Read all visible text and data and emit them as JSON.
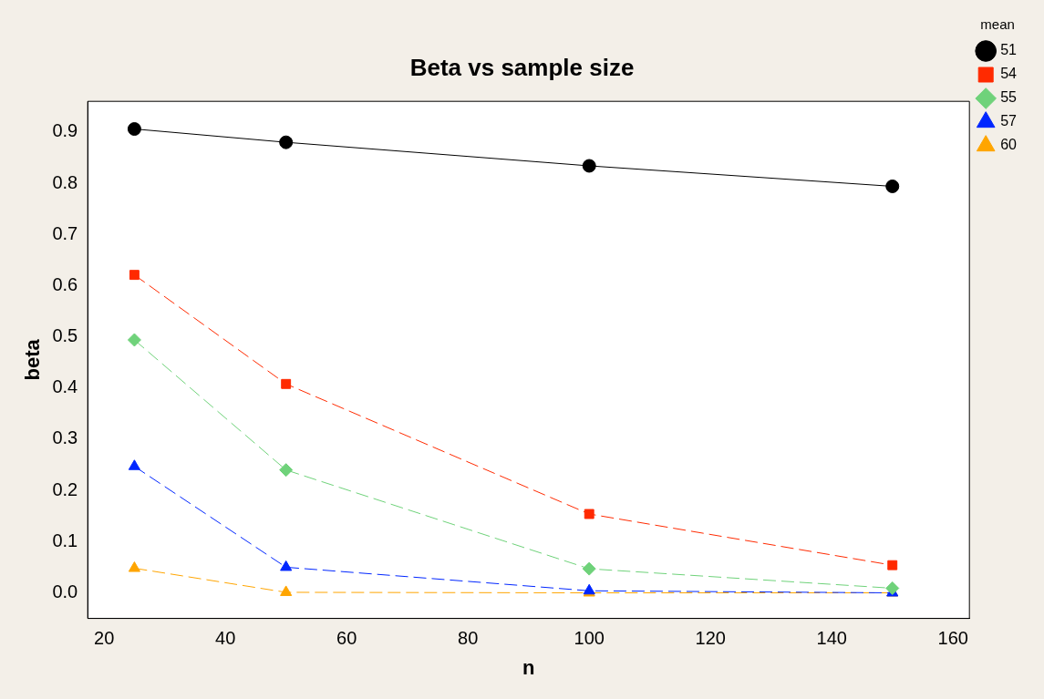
{
  "chart_data": {
    "type": "line",
    "title": "Beta vs sample size",
    "xlabel": "n",
    "ylabel": "beta",
    "legend_title": "mean",
    "x": [
      25,
      50,
      100,
      150
    ],
    "xlim": [
      17.3,
      162.7
    ],
    "xticks": [
      20,
      40,
      60,
      80,
      100,
      120,
      140,
      160
    ],
    "ylim": [
      -0.05,
      0.96
    ],
    "yticks": [
      {
        "value": 0,
        "label": "0.0"
      },
      0.1,
      0.2,
      0.3,
      0.4,
      0.5,
      0.6,
      0.7,
      0.8,
      0.9
    ],
    "grid": false,
    "legend": "top right",
    "series": [
      {
        "name": "51",
        "color": "#000000",
        "values": [
          0.906,
          0.88,
          0.834,
          0.794
        ],
        "marker": "circle",
        "line_style": "solid"
      },
      {
        "name": "54",
        "color": "#ff2a00",
        "values": [
          0.621,
          0.408,
          0.154,
          0.054
        ],
        "marker": "square",
        "line_style": "dashed"
      },
      {
        "name": "55",
        "color": "#6fd27a",
        "values": [
          0.494,
          0.24,
          0.047,
          0.009
        ],
        "marker": "diamond",
        "line_style": "dashed"
      },
      {
        "name": "57",
        "color": "#0026ff",
        "values": [
          0.247,
          0.05,
          0.004,
          0.0
        ],
        "marker": "triangle",
        "line_style": "dashed"
      },
      {
        "name": "60",
        "color": "#ffa500",
        "values": [
          0.048,
          0.001,
          0.0,
          0.0
        ],
        "marker": "triangle",
        "line_style": "dashed"
      }
    ]
  }
}
